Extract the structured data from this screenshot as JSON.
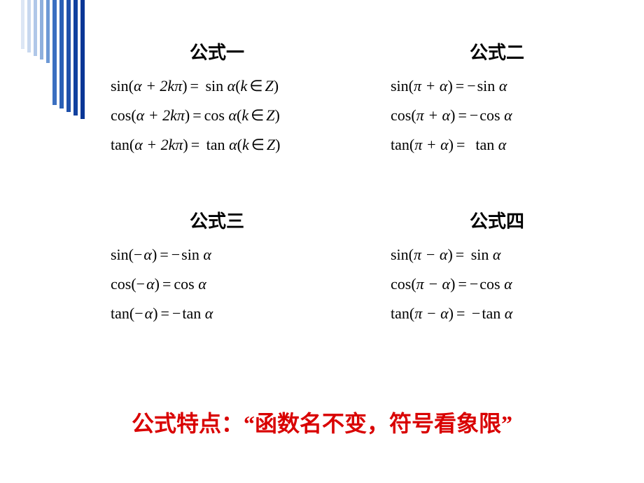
{
  "decoration": {
    "bar_colors": [
      "#dce6f5",
      "#c8d8ef",
      "#b0c7e8",
      "#8fb0dd",
      "#6d99d5",
      "#3b6fc0",
      "#2a5fb5",
      "#1f50aa",
      "#11419f",
      "#0a3696"
    ]
  },
  "text_color": "#000000",
  "footer_color": "#d90000",
  "background_color": "#ffffff",
  "title_fontsize": 26,
  "formula_fontsize": 22,
  "footer_fontsize": 32,
  "blocks": [
    {
      "title": "公式一",
      "lines": [
        "sin(α + 2kπ) =  sin α (k ∈ Z)",
        "cos(α + 2kπ) = cos α (k ∈ Z)",
        "tan(α + 2kπ) =  tan α (k ∈ Z)"
      ]
    },
    {
      "title": "公式二",
      "lines": [
        "sin(π + α) = − sin α",
        "cos(π + α) = − cos α",
        "tan(π + α) =  tan α"
      ]
    },
    {
      "title": "公式三",
      "lines": [
        "sin(−α) = − sin α",
        "cos(−α) = cos α",
        "tan(−α) = − tan α"
      ]
    },
    {
      "title": "公式四",
      "lines": [
        "sin(π − α) =  sin α",
        "cos(π − α) = − cos α",
        "tan(π − α) =  − tan α"
      ]
    }
  ],
  "footer": "公式特点：“函数名不变，符号看象限”"
}
